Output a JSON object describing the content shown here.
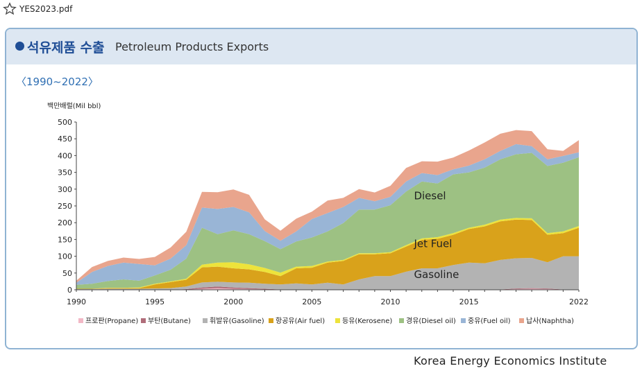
{
  "file_title": "YES2023.pdf",
  "header": {
    "title_kr": "석유제품 수출",
    "title_en": "Petroleum Products Exports"
  },
  "period": "〈1990~2022〉",
  "footer": "Korea Energy Economics Institute",
  "chart_data": {
    "type": "area",
    "stacked": true,
    "ylabel": "백만배럴(Mil bbl)",
    "ylim": [
      0,
      500
    ],
    "yticks": [
      0,
      50,
      100,
      150,
      200,
      250,
      300,
      350,
      400,
      450,
      500
    ],
    "xlim": [
      1990,
      2022
    ],
    "xticks": [
      1990,
      1995,
      2000,
      2005,
      2010,
      2015,
      2022
    ],
    "grid": false,
    "legend_position": "bottom",
    "x": [
      1990,
      1991,
      1992,
      1993,
      1994,
      1995,
      1996,
      1997,
      1998,
      1999,
      2000,
      2001,
      2002,
      2003,
      2004,
      2005,
      2006,
      2007,
      2008,
      2009,
      2010,
      2011,
      2012,
      2013,
      2014,
      2015,
      2016,
      2017,
      2018,
      2019,
      2020,
      2021,
      2022
    ],
    "series": [
      {
        "name": "프로판(Propane)",
        "color": "#f2b8c6",
        "values": [
          0,
          0,
          0,
          0,
          0,
          0,
          0,
          0,
          3,
          5,
          3,
          2,
          1,
          0,
          0,
          0,
          0,
          0,
          0,
          0,
          0,
          0,
          0,
          0,
          0,
          0,
          0,
          0,
          2,
          3,
          2,
          0,
          0
        ]
      },
      {
        "name": "부탄(Butane)",
        "color": "#b06d7a",
        "values": [
          0,
          0,
          0,
          0,
          0,
          0,
          0,
          2,
          4,
          5,
          4,
          3,
          2,
          1,
          1,
          1,
          1,
          1,
          1,
          1,
          1,
          1,
          1,
          1,
          1,
          1,
          1,
          1,
          2,
          2,
          2,
          1,
          1
        ]
      },
      {
        "name": "휘발유(Gasoline)",
        "color": "#b3b3b3",
        "values": [
          2,
          2,
          3,
          3,
          3,
          4,
          5,
          8,
          15,
          14,
          15,
          16,
          15,
          15,
          18,
          15,
          20,
          15,
          30,
          40,
          40,
          53,
          63,
          63,
          73,
          80,
          78,
          88,
          90,
          90,
          78,
          99,
          99
        ]
      },
      {
        "name": "항공유(Air fuel)",
        "color": "#d9a21b",
        "values": [
          1,
          1,
          2,
          2,
          2,
          12,
          18,
          20,
          45,
          45,
          42,
          40,
          35,
          25,
          45,
          50,
          60,
          70,
          75,
          65,
          68,
          75,
          85,
          88,
          90,
          100,
          110,
          115,
          115,
          113,
          82,
          69,
          85
        ]
      },
      {
        "name": "등유(Kerosene)",
        "color": "#ede33b",
        "values": [
          0,
          0,
          1,
          1,
          2,
          2,
          2,
          3,
          8,
          12,
          18,
          15,
          12,
          10,
          5,
          5,
          3,
          3,
          3,
          3,
          3,
          4,
          4,
          5,
          5,
          4,
          5,
          5,
          5,
          5,
          5,
          5,
          5
        ]
      },
      {
        "name": "경유(Diesel oil)",
        "color": "#9dc183",
        "values": [
          12,
          15,
          20,
          25,
          20,
          25,
          35,
          60,
          110,
          85,
          95,
          90,
          80,
          70,
          75,
          85,
          90,
          110,
          130,
          130,
          140,
          160,
          170,
          160,
          175,
          165,
          170,
          180,
          190,
          195,
          200,
          205,
          205
        ]
      },
      {
        "name": "중유(Fuel oil)",
        "color": "#99b5d6",
        "values": [
          6,
          35,
          45,
          50,
          50,
          30,
          33,
          40,
          60,
          75,
          70,
          65,
          30,
          25,
          30,
          55,
          55,
          48,
          35,
          25,
          25,
          30,
          25,
          25,
          15,
          20,
          25,
          25,
          30,
          20,
          20,
          20,
          15
        ]
      },
      {
        "name": "납사(Naphtha)",
        "color": "#e9a58d",
        "values": [
          6,
          15,
          15,
          15,
          15,
          25,
          33,
          40,
          47,
          50,
          52,
          52,
          35,
          30,
          38,
          22,
          37,
          27,
          26,
          26,
          33,
          40,
          35,
          40,
          35,
          45,
          50,
          51,
          42,
          45,
          30,
          15,
          36
        ]
      }
    ],
    "annotations": [
      {
        "text": "Diesel",
        "x": 2011.5,
        "y": 280
      },
      {
        "text": "Jet Fuel",
        "x": 2011.5,
        "y": 137
      },
      {
        "text": "Gasoline",
        "x": 2011.5,
        "y": 45
      }
    ]
  }
}
